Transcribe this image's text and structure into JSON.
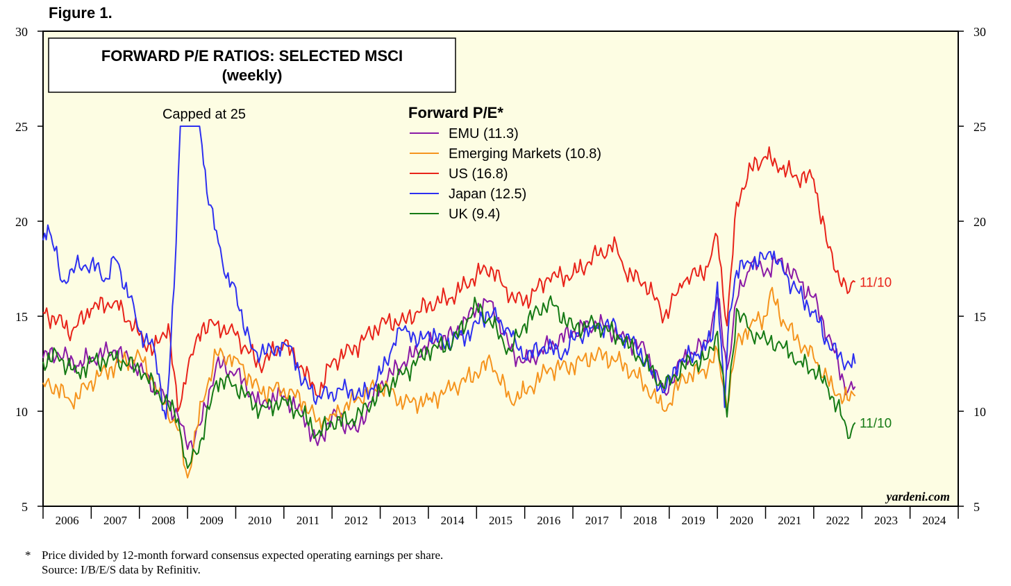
{
  "figure_label": "Figure 1.",
  "footnote": {
    "star": "*",
    "line1": "Price divided by 12-month forward consensus expected operating earnings per share.",
    "line2": "Source: I/B/E/S data by Refinitiv."
  },
  "chart_data": {
    "type": "line",
    "title": "FORWARD P/E RATIOS: SELECTED MSCI",
    "subtitle": "(weekly)",
    "legend_title": "Forward P/E*",
    "legend_position": "top-center",
    "annotation": "Capped at 25",
    "watermark": "yardeni.com",
    "ylim": [
      5,
      30
    ],
    "yticks": [
      5,
      10,
      15,
      20,
      25,
      30
    ],
    "xlim": [
      2006.0,
      2025.0
    ],
    "xtick_labels": [
      "2006",
      "2007",
      "2008",
      "2009",
      "2010",
      "2011",
      "2012",
      "2013",
      "2014",
      "2015",
      "2016",
      "2017",
      "2018",
      "2019",
      "2020",
      "2021",
      "2022",
      "2023",
      "2024"
    ],
    "background": "#fdfde3",
    "end_labels": [
      {
        "text": "11/10",
        "series": "US",
        "color": "#e8231a"
      },
      {
        "text": "11/10",
        "series": "UK",
        "color": "#157a15"
      }
    ],
    "series": [
      {
        "name": "EMU (11.3)",
        "color": "#8a1aa6",
        "x": [
          2006.0,
          2006.3,
          2006.7,
          2007.0,
          2007.5,
          2008.0,
          2008.4,
          2008.8,
          2009.0,
          2009.3,
          2009.6,
          2010.0,
          2010.5,
          2011.0,
          2011.4,
          2011.7,
          2012.0,
          2012.5,
          2013.0,
          2013.5,
          2014.0,
          2014.5,
          2015.0,
          2015.3,
          2015.7,
          2016.0,
          2016.5,
          2017.0,
          2017.5,
          2018.0,
          2018.5,
          2018.9,
          2019.3,
          2019.8,
          2020.0,
          2020.2,
          2020.4,
          2020.7,
          2021.0,
          2021.3,
          2021.7,
          2022.0,
          2022.4,
          2022.7,
          2022.86
        ],
        "values": [
          12.8,
          13.1,
          12.4,
          12.8,
          13.2,
          12.3,
          11.0,
          9.8,
          8.0,
          9.5,
          12.5,
          12.0,
          10.4,
          10.8,
          9.8,
          8.2,
          9.8,
          9.0,
          11.4,
          12.6,
          13.5,
          14.0,
          15.4,
          15.8,
          13.2,
          12.6,
          13.4,
          14.2,
          14.6,
          14.0,
          13.2,
          11.0,
          12.8,
          13.6,
          16.0,
          12.2,
          15.8,
          17.8,
          17.3,
          18.0,
          16.8,
          16.0,
          13.3,
          11.0,
          11.3
        ]
      },
      {
        "name": "Emerging Markets (10.8)",
        "color": "#f5941e",
        "x": [
          2006.0,
          2006.3,
          2006.6,
          2007.0,
          2007.5,
          2008.0,
          2008.4,
          2008.8,
          2009.0,
          2009.3,
          2009.6,
          2010.0,
          2010.5,
          2011.0,
          2011.4,
          2011.7,
          2012.0,
          2012.5,
          2013.0,
          2013.5,
          2014.0,
          2014.5,
          2015.0,
          2015.3,
          2015.7,
          2016.0,
          2016.5,
          2017.0,
          2017.5,
          2018.0,
          2018.5,
          2018.9,
          2019.3,
          2019.8,
          2020.0,
          2020.2,
          2020.4,
          2020.7,
          2021.0,
          2021.1,
          2021.4,
          2021.7,
          2022.0,
          2022.4,
          2022.7,
          2022.86
        ],
        "values": [
          11.5,
          11.2,
          10.4,
          11.6,
          12.4,
          13.0,
          11.0,
          9.0,
          6.5,
          10.5,
          13.0,
          12.8,
          11.0,
          11.2,
          10.5,
          9.5,
          9.8,
          10.6,
          11.4,
          10.4,
          10.6,
          11.2,
          12.0,
          12.6,
          10.6,
          11.0,
          12.2,
          12.4,
          13.0,
          12.6,
          11.4,
          10.0,
          11.8,
          12.2,
          13.2,
          10.2,
          13.6,
          14.6,
          15.0,
          16.3,
          14.6,
          13.6,
          12.8,
          11.2,
          10.6,
          10.8
        ]
      },
      {
        "name": "US (16.8)",
        "color": "#e8231a",
        "x": [
          2006.0,
          2006.3,
          2006.6,
          2007.0,
          2007.5,
          2008.0,
          2008.3,
          2008.6,
          2008.8,
          2009.0,
          2009.3,
          2009.6,
          2010.0,
          2010.5,
          2011.0,
          2011.4,
          2011.7,
          2012.0,
          2012.5,
          2013.0,
          2013.5,
          2014.0,
          2014.5,
          2015.0,
          2015.3,
          2015.7,
          2016.0,
          2016.5,
          2017.0,
          2017.5,
          2017.9,
          2018.1,
          2018.5,
          2018.9,
          2019.3,
          2019.8,
          2020.0,
          2020.2,
          2020.4,
          2020.7,
          2021.0,
          2021.3,
          2021.6,
          2022.0,
          2022.3,
          2022.5,
          2022.7,
          2022.86
        ],
        "values": [
          15.2,
          14.8,
          14.2,
          15.4,
          15.8,
          14.0,
          13.2,
          14.6,
          10.0,
          12.2,
          14.4,
          14.6,
          14.0,
          12.4,
          13.6,
          12.2,
          10.8,
          12.6,
          13.4,
          14.6,
          14.8,
          15.6,
          16.0,
          17.2,
          17.6,
          16.0,
          15.8,
          17.0,
          17.2,
          18.2,
          18.8,
          17.2,
          16.8,
          15.0,
          16.8,
          17.6,
          19.2,
          14.5,
          21.0,
          22.8,
          23.4,
          22.8,
          22.4,
          22.2,
          18.6,
          17.4,
          16.2,
          16.8
        ]
      },
      {
        "name": "Japan (12.5)",
        "color": "#2d2ff0",
        "x": [
          2006.0,
          2006.1,
          2006.2,
          2006.4,
          2006.6,
          2007.0,
          2007.3,
          2007.5,
          2007.8,
          2008.0,
          2008.3,
          2008.55,
          2008.62,
          2008.72,
          2008.85,
          2009.0,
          2009.25,
          2009.3,
          2009.4,
          2009.6,
          2009.8,
          2010.0,
          2010.2,
          2010.4,
          2010.6,
          2011.0,
          2011.2,
          2011.4,
          2011.7,
          2012.0,
          2012.3,
          2012.6,
          2012.9,
          2013.2,
          2013.4,
          2013.6,
          2013.8,
          2014.0,
          2014.3,
          2014.6,
          2014.9,
          2015.2,
          2015.5,
          2015.8,
          2016.0,
          2016.4,
          2016.8,
          2017.0,
          2017.4,
          2017.8,
          2018.0,
          2018.3,
          2018.6,
          2018.9,
          2019.2,
          2019.6,
          2019.9,
          2020.0,
          2020.15,
          2020.25,
          2020.4,
          2020.7,
          2021.0,
          2021.1,
          2021.4,
          2021.7,
          2022.0,
          2022.3,
          2022.6,
          2022.86
        ],
        "values": [
          19.0,
          19.8,
          18.8,
          16.8,
          17.5,
          17.8,
          17.0,
          18.0,
          16.0,
          14.2,
          13.4,
          9.6,
          12.0,
          16.5,
          25.0,
          25.0,
          25.0,
          24.0,
          21.5,
          19.5,
          17.0,
          16.5,
          14.0,
          13.2,
          13.0,
          13.6,
          13.0,
          11.5,
          10.8,
          11.0,
          11.2,
          10.8,
          11.4,
          13.0,
          14.4,
          14.2,
          13.6,
          14.2,
          13.6,
          13.8,
          14.2,
          15.2,
          14.8,
          13.8,
          12.8,
          13.4,
          13.0,
          13.8,
          14.4,
          14.6,
          14.0,
          13.6,
          12.2,
          11.0,
          12.6,
          13.0,
          13.8,
          16.8,
          10.2,
          15.2,
          17.4,
          17.8,
          18.0,
          18.4,
          17.2,
          16.2,
          15.2,
          13.6,
          12.6,
          12.5
        ]
      },
      {
        "name": "UK (9.4)",
        "color": "#157a15",
        "x": [
          2006.0,
          2006.3,
          2006.7,
          2007.0,
          2007.5,
          2008.0,
          2008.4,
          2008.8,
          2009.0,
          2009.3,
          2009.6,
          2010.0,
          2010.5,
          2011.0,
          2011.4,
          2011.7,
          2012.0,
          2012.5,
          2013.0,
          2013.5,
          2014.0,
          2014.5,
          2015.0,
          2015.3,
          2015.7,
          2016.0,
          2016.5,
          2017.0,
          2017.5,
          2018.0,
          2018.5,
          2018.9,
          2019.3,
          2019.8,
          2020.0,
          2020.2,
          2020.4,
          2020.7,
          2021.0,
          2021.4,
          2021.7,
          2022.0,
          2022.3,
          2022.6,
          2022.75,
          2022.86
        ],
        "values": [
          12.6,
          12.9,
          12.0,
          12.6,
          12.8,
          12.2,
          11.0,
          9.6,
          7.0,
          8.6,
          11.6,
          11.4,
          10.0,
          10.6,
          9.8,
          8.8,
          9.4,
          9.6,
          11.0,
          12.0,
          13.2,
          13.6,
          15.6,
          14.6,
          13.2,
          14.6,
          15.8,
          14.4,
          14.6,
          13.8,
          12.6,
          11.2,
          12.4,
          12.8,
          14.2,
          9.7,
          15.4,
          14.2,
          13.8,
          13.4,
          12.6,
          12.2,
          11.2,
          9.6,
          8.6,
          9.4
        ]
      }
    ]
  }
}
